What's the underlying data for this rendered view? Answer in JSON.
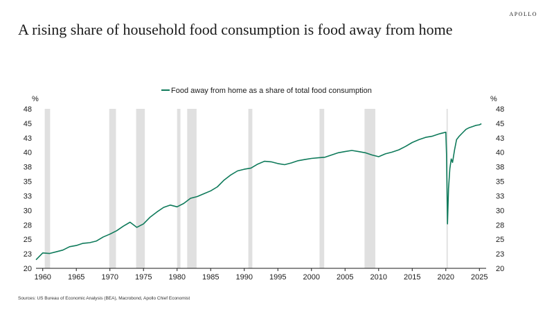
{
  "brand": "APOLLO",
  "title": "A rising share of household food consumption is food away from home",
  "source": "Sources: US Bureau of Economic Analysis (BEA), Macrobond, Apollo Chief Economist",
  "colors": {
    "series": "#0e7a5a",
    "recession": "#e0e0e0",
    "text": "#1a1a1a"
  },
  "chart_data": {
    "type": "line",
    "legend_position": "top-center",
    "grid": false,
    "xlim": [
      1959,
      2026
    ],
    "ylim": [
      20,
      48
    ],
    "y_unit_left": "%",
    "y_unit_right": "%",
    "x_ticks": [
      1960,
      1965,
      1970,
      1975,
      1980,
      1985,
      1990,
      1995,
      2000,
      2005,
      2010,
      2015,
      2020,
      2025
    ],
    "y_tick_labels": [
      "48",
      "45",
      "43",
      "40",
      "38",
      "35",
      "33",
      "30",
      "28",
      "25",
      "23",
      "20"
    ],
    "recessions": [
      [
        1960.3,
        1961.1
      ],
      [
        1969.9,
        1970.9
      ],
      [
        1973.9,
        1975.2
      ],
      [
        1980.0,
        1980.5
      ],
      [
        1981.5,
        1982.9
      ],
      [
        1990.6,
        1991.2
      ],
      [
        2001.2,
        2001.9
      ],
      [
        2007.9,
        2009.5
      ],
      [
        2020.1,
        2020.3
      ]
    ],
    "series": [
      {
        "name": "Food away from home as a share of total food consumption",
        "points": [
          [
            1959.0,
            21.5
          ],
          [
            1960.0,
            22.7
          ],
          [
            1961.0,
            22.6
          ],
          [
            1962.0,
            22.9
          ],
          [
            1963.0,
            23.2
          ],
          [
            1964.0,
            23.8
          ],
          [
            1965.0,
            24.0
          ],
          [
            1966.0,
            24.4
          ],
          [
            1967.0,
            24.5
          ],
          [
            1968.0,
            24.8
          ],
          [
            1969.0,
            25.5
          ],
          [
            1970.0,
            26.0
          ],
          [
            1971.0,
            26.6
          ],
          [
            1972.0,
            27.4
          ],
          [
            1973.0,
            28.1
          ],
          [
            1974.0,
            27.2
          ],
          [
            1975.0,
            27.8
          ],
          [
            1976.0,
            29.0
          ],
          [
            1977.0,
            29.9
          ],
          [
            1978.0,
            30.7
          ],
          [
            1979.0,
            31.1
          ],
          [
            1980.0,
            30.8
          ],
          [
            1981.0,
            31.4
          ],
          [
            1982.0,
            32.3
          ],
          [
            1983.0,
            32.6
          ],
          [
            1984.0,
            33.1
          ],
          [
            1985.0,
            33.6
          ],
          [
            1986.0,
            34.3
          ],
          [
            1987.0,
            35.5
          ],
          [
            1988.0,
            36.4
          ],
          [
            1989.0,
            37.1
          ],
          [
            1990.0,
            37.4
          ],
          [
            1991.0,
            37.6
          ],
          [
            1992.0,
            38.3
          ],
          [
            1993.0,
            38.8
          ],
          [
            1994.0,
            38.7
          ],
          [
            1995.0,
            38.4
          ],
          [
            1996.0,
            38.2
          ],
          [
            1997.0,
            38.5
          ],
          [
            1998.0,
            38.9
          ],
          [
            1999.0,
            39.1
          ],
          [
            2000.0,
            39.3
          ],
          [
            2001.0,
            39.4
          ],
          [
            2002.0,
            39.5
          ],
          [
            2003.0,
            39.9
          ],
          [
            2004.0,
            40.3
          ],
          [
            2005.0,
            40.5
          ],
          [
            2006.0,
            40.7
          ],
          [
            2007.0,
            40.5
          ],
          [
            2008.0,
            40.3
          ],
          [
            2009.0,
            39.9
          ],
          [
            2010.0,
            39.6
          ],
          [
            2011.0,
            40.1
          ],
          [
            2012.0,
            40.4
          ],
          [
            2013.0,
            40.8
          ],
          [
            2014.0,
            41.4
          ],
          [
            2015.0,
            42.1
          ],
          [
            2016.0,
            42.6
          ],
          [
            2017.0,
            43.0
          ],
          [
            2018.0,
            43.2
          ],
          [
            2019.0,
            43.6
          ],
          [
            2020.0,
            43.9
          ],
          [
            2020.1,
            40.0
          ],
          [
            2020.25,
            27.8
          ],
          [
            2020.4,
            34.0
          ],
          [
            2020.6,
            37.5
          ],
          [
            2020.8,
            39.2
          ],
          [
            2021.0,
            38.6
          ],
          [
            2021.3,
            40.8
          ],
          [
            2021.6,
            42.6
          ],
          [
            2022.0,
            43.2
          ],
          [
            2022.5,
            43.8
          ],
          [
            2023.0,
            44.4
          ],
          [
            2023.5,
            44.7
          ],
          [
            2024.0,
            44.9
          ],
          [
            2024.5,
            45.1
          ],
          [
            2025.0,
            45.2
          ],
          [
            2025.3,
            45.4
          ]
        ]
      }
    ]
  }
}
